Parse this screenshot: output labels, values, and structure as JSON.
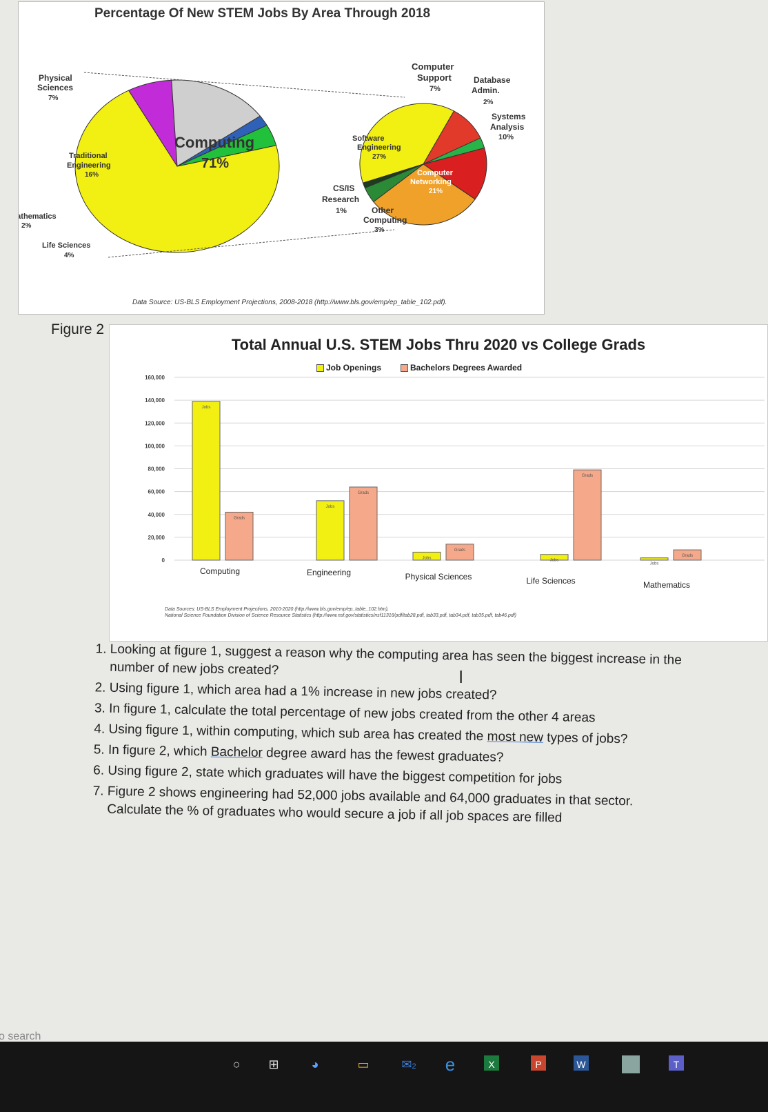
{
  "figure1": {
    "title": "Percentage Of New STEM Jobs By Area Through 2018",
    "source": "Data Source: US-BLS Employment Projections, 2008-2018 (http://www.bls.gov/emp/ep_table_102.pdf).",
    "main_pie": [
      {
        "label": "Computing",
        "percent": "71%",
        "value": 71,
        "color": "#f2ef12"
      },
      {
        "label": "Physical Sciences",
        "percent": "7%",
        "value": 7,
        "color": "#c12bd8"
      },
      {
        "label": "Traditional Engineering",
        "percent": "16%",
        "value": 16,
        "color": "#cfcfcf"
      },
      {
        "label": "Mathematics",
        "percent": "2%",
        "value": 2,
        "color": "#2f61b8"
      },
      {
        "label": "Life Sciences",
        "percent": "4%",
        "value": 4,
        "color": "#22c13c"
      }
    ],
    "sub_pie": [
      {
        "label": "Software Engineering",
        "percent": "27%",
        "value": 27,
        "color": "#f2ef12"
      },
      {
        "label": "Computer Support",
        "percent": "7%",
        "value": 7,
        "color": "#e23a2a"
      },
      {
        "label": "Database Admin.",
        "percent": "2%",
        "value": 2,
        "color": "#29b44a"
      },
      {
        "label": "Systems Analysis",
        "percent": "10%",
        "value": 10,
        "color": "#d91f1f"
      },
      {
        "label": "Computer Networking",
        "percent": "21%",
        "value": 21,
        "color": "#f0a12a"
      },
      {
        "label": "Other Computing",
        "percent": "3%",
        "value": 3,
        "color": "#2b8a36"
      },
      {
        "label": "CS/IS Research",
        "percent": "1%",
        "value": 1,
        "color": "#1d3b1d"
      }
    ],
    "labels": {
      "physical": [
        "Physical",
        "Sciences",
        "7%"
      ],
      "traditional": [
        "Traditional",
        "Engineering",
        "16%"
      ],
      "computing": [
        "Computing",
        "71%"
      ],
      "mathematics": [
        "Mathematics",
        "2%"
      ],
      "life": [
        "Life Sciences",
        "4%"
      ],
      "support": [
        "Computer",
        "Support",
        "7%"
      ],
      "database": [
        "Database",
        "Admin.",
        "2%"
      ],
      "systems": [
        "Systems",
        "Analysis",
        "10%"
      ],
      "software": [
        "Software",
        "Engineering",
        "27%"
      ],
      "networking": [
        "Computer",
        "Networking",
        "21%"
      ],
      "csis": [
        "CS/IS",
        "Research",
        "1%"
      ],
      "other": [
        "Other",
        "Computing",
        "3%"
      ]
    }
  },
  "figure2": {
    "caption": "Figure 2",
    "source_line1": "Data Sources: US-BLS Employment Projections, 2010-2020 (http://www.bls.gov/emp/ep_table_102.htm),",
    "source_line2": "National Science Foundation Division of Science Resource Statistics (http://www.nsf.gov/statistics/nsf11316/pdf/tab28.pdf, tab33.pdf, tab34.pdf, tab35.pdf, tab46.pdf)"
  },
  "chart_data": {
    "type": "bar",
    "title": "Total Annual U.S. STEM Jobs Thru 2020 vs College Grads",
    "categories": [
      "Computing",
      "Engineering",
      "Physical Sciences",
      "Life Sciences",
      "Mathematics"
    ],
    "series": [
      {
        "name": "Job Openings",
        "values": [
          139000,
          52000,
          7000,
          5000,
          2000
        ],
        "color": "#f2ef12",
        "bar_label": "Jobs"
      },
      {
        "name": "Bachelors Degrees Awarded",
        "values": [
          42000,
          64000,
          14000,
          79000,
          9000
        ],
        "color": "#f6a98a",
        "bar_label": "Grads"
      }
    ],
    "ylim": [
      0,
      160000
    ],
    "yticks": [
      "0",
      "20,000",
      "40,000",
      "60,000",
      "80,000",
      "100,000",
      "120,000",
      "140,000",
      "160,000"
    ],
    "grid": true,
    "legend": "top"
  },
  "questions": [
    {
      "before": "Looking at figure 1, suggest a reason why the computing area has seen the biggest increase in the number of new jobs created?",
      "u": "",
      "after": ""
    },
    {
      "before": "Using figure 1, which area had a 1% increase in new jobs created?",
      "u": "",
      "after": ""
    },
    {
      "before": "In figure 1, calculate the total percentage of new jobs created from the other 4 areas",
      "u": "",
      "after": ""
    },
    {
      "before": "Using figure 1, within computing, which sub area has created the ",
      "u": "most new",
      "after": " types of jobs?"
    },
    {
      "before": "In figure 2, which ",
      "u": "Bachelor",
      "after": " degree award has the fewest graduates?"
    },
    {
      "before": "Using figure 2, state which graduates will have the biggest competition for jobs",
      "u": "",
      "after": ""
    },
    {
      "before": "Figure 2 shows engineering had 52,000 jobs available and 64,000 graduates in that sector. Calculate the % of graduates who would secure a job if all job spaces are filled",
      "u": "",
      "after": ""
    }
  ],
  "taskbar": {
    "search": "o search",
    "icons": [
      "cortana-icon",
      "task-view-icon",
      "chrome-icon",
      "files-icon",
      "mail-icon",
      "edge-icon",
      "excel-icon",
      "powerpoint-icon",
      "word-icon",
      "photos-icon",
      "teams-icon"
    ],
    "mail_badge": "2"
  }
}
